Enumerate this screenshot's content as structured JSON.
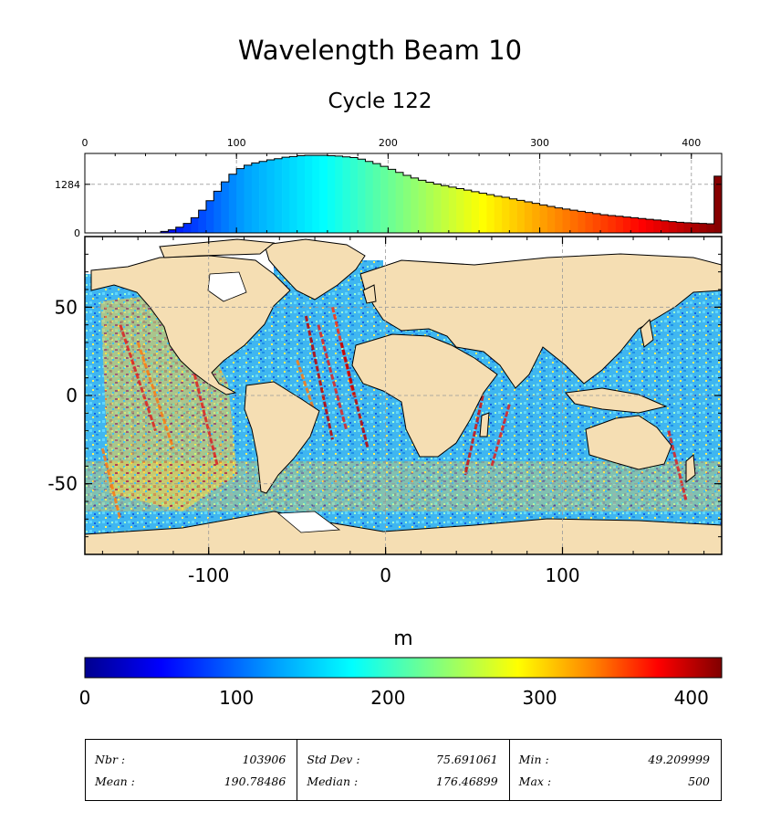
{
  "title": "Wavelength Beam 10",
  "subtitle": "Cycle 122",
  "chart_data": [
    {
      "type": "bar",
      "role": "histogram",
      "x_ticks": [
        "0",
        "100",
        "200",
        "300",
        "400"
      ],
      "y_ticks": [
        "0",
        "1284"
      ],
      "xlim": [
        0,
        420
      ],
      "ylim": [
        0,
        2100
      ],
      "bin_width": 5,
      "bin_start": [
        0,
        5,
        10,
        15,
        20,
        25,
        30,
        35,
        40,
        45,
        50,
        55,
        60,
        65,
        70,
        75,
        80,
        85,
        90,
        95,
        100,
        105,
        110,
        115,
        120,
        125,
        130,
        135,
        140,
        145,
        150,
        155,
        160,
        165,
        170,
        175,
        180,
        185,
        190,
        195,
        200,
        205,
        210,
        215,
        220,
        225,
        230,
        235,
        240,
        245,
        250,
        255,
        260,
        265,
        270,
        275,
        280,
        285,
        290,
        295,
        300,
        305,
        310,
        315,
        320,
        325,
        330,
        335,
        340,
        345,
        350,
        355,
        360,
        365,
        370,
        375,
        380,
        385,
        390,
        395,
        400,
        405,
        410,
        415
      ],
      "counts": [
        0,
        0,
        0,
        0,
        0,
        0,
        0,
        0,
        0,
        0,
        40,
        80,
        150,
        250,
        400,
        600,
        850,
        1100,
        1350,
        1550,
        1700,
        1790,
        1850,
        1890,
        1930,
        1960,
        2000,
        2020,
        2040,
        2050,
        2050,
        2050,
        2040,
        2030,
        2010,
        1990,
        1950,
        1890,
        1830,
        1760,
        1680,
        1600,
        1520,
        1450,
        1390,
        1340,
        1290,
        1250,
        1210,
        1170,
        1130,
        1090,
        1050,
        1010,
        970,
        940,
        900,
        860,
        820,
        780,
        740,
        700,
        660,
        630,
        600,
        570,
        540,
        510,
        480,
        460,
        440,
        420,
        400,
        380,
        360,
        340,
        320,
        300,
        280,
        270,
        260,
        250,
        240,
        1500
      ]
    },
    {
      "type": "heatmap",
      "role": "geographic map",
      "x_ticks": [
        "-100",
        "0",
        "100"
      ],
      "y_ticks": [
        "50",
        "0",
        "-50"
      ],
      "xlim": [
        -170,
        190
      ],
      "ylim": [
        -90,
        90
      ]
    }
  ],
  "colorbar": {
    "label": "m",
    "ticks": [
      "0",
      "100",
      "200",
      "300",
      "400"
    ],
    "range": [
      0,
      420
    ]
  },
  "stats": {
    "nbr_label": "Nbr :",
    "nbr_value": "103906",
    "mean_label": "Mean :",
    "mean_value": "190.78486",
    "std_label": "Std Dev :",
    "std_value": "75.691061",
    "median_label": "Median :",
    "median_value": "176.46899",
    "min_label": "Min :",
    "min_value": "49.209999",
    "max_label": "Max :",
    "max_value": "500"
  },
  "colors": {
    "land": "#f5deb3",
    "ocean_base": "#29a8f0",
    "colormap": [
      "#00008f",
      "#0000ff",
      "#00a0ff",
      "#00ffff",
      "#80ff80",
      "#ffff00",
      "#ff8000",
      "#ff0000",
      "#800000"
    ]
  }
}
